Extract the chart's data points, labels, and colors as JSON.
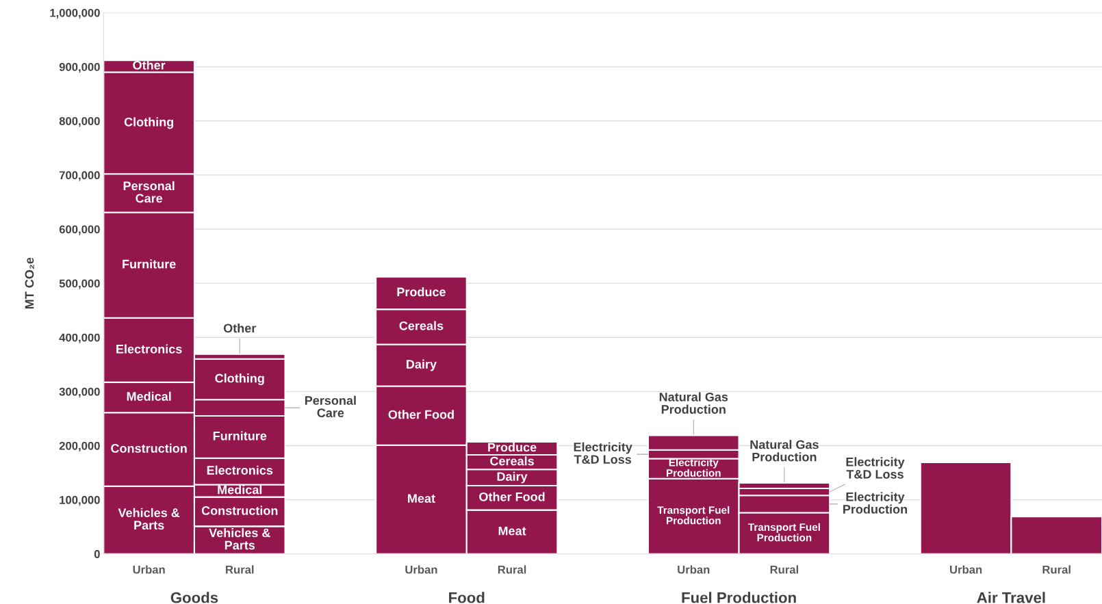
{
  "chart_data": {
    "type": "bar",
    "stacked": true,
    "ylabel": "MT CO₂e",
    "categories": [
      "Urban",
      "Rural",
      null,
      "Urban",
      "Rural",
      null,
      "Urban",
      "Rural",
      null,
      "Urban",
      "Rural"
    ],
    "series": [
      {
        "name": "Vehicles &\nParts",
        "color": "#93174c",
        "values": [
          125000,
          51000,
          null,
          null,
          null,
          null,
          null,
          null,
          null,
          null,
          null
        ]
      },
      {
        "name": "Construction",
        "color": "#93174c",
        "values": [
          136000,
          54000,
          null,
          null,
          null,
          null,
          null,
          null,
          null,
          null,
          null
        ]
      },
      {
        "name": "Medical",
        "color": "#93174c",
        "values": [
          56000,
          23000,
          null,
          null,
          null,
          null,
          null,
          null,
          null,
          null,
          null
        ]
      },
      {
        "name": "Electronics",
        "color": "#93174c",
        "values": [
          119000,
          49000,
          null,
          null,
          null,
          null,
          null,
          null,
          null,
          null,
          null
        ]
      },
      {
        "name": "Furniture",
        "color": "#93174c",
        "values": [
          195000,
          78000,
          null,
          null,
          null,
          null,
          null,
          null,
          null,
          null,
          null
        ]
      },
      {
        "name": "Personal\nCare",
        "color": "#93174c",
        "values": [
          71000,
          30000,
          null,
          null,
          null,
          null,
          null,
          null,
          null,
          null,
          null
        ]
      },
      {
        "name": "Clothing",
        "color": "#93174c",
        "values": [
          188000,
          75000,
          null,
          null,
          null,
          null,
          null,
          null,
          null,
          null,
          null
        ]
      },
      {
        "name": "Other",
        "color": "#93174c",
        "values": [
          22000,
          9000,
          null,
          null,
          null,
          null,
          null,
          null,
          null,
          null,
          null
        ]
      },
      {
        "name": "Meat",
        "color": "#93174c",
        "values": [
          null,
          null,
          null,
          201000,
          81000,
          null,
          null,
          null,
          null,
          null,
          null
        ]
      },
      {
        "name": "Other Food",
        "color": "#93174c",
        "values": [
          null,
          null,
          null,
          109000,
          45000,
          null,
          null,
          null,
          null,
          null,
          null
        ]
      },
      {
        "name": "Dairy",
        "color": "#93174c",
        "values": [
          null,
          null,
          null,
          77000,
          30000,
          null,
          null,
          null,
          null,
          null,
          null
        ]
      },
      {
        "name": "Cereals",
        "color": "#93174c",
        "values": [
          null,
          null,
          null,
          65000,
          27000,
          null,
          null,
          null,
          null,
          null,
          null
        ]
      },
      {
        "name": "Produce",
        "color": "#93174c",
        "values": [
          null,
          null,
          null,
          60000,
          24000,
          null,
          null,
          null,
          null,
          null,
          null
        ]
      },
      {
        "name": "Transport Fuel\nProduction",
        "color": "#93174c",
        "values": [
          null,
          null,
          null,
          null,
          null,
          null,
          139000,
          76000,
          null,
          null,
          null
        ]
      },
      {
        "name": "Electricity\nProduction",
        "color": "#93174c",
        "values": [
          null,
          null,
          null,
          null,
          null,
          null,
          37000,
          32000,
          null,
          null,
          null
        ]
      },
      {
        "name": "Electricity\nT&D Loss",
        "color": "#93174c",
        "values": [
          null,
          null,
          null,
          null,
          null,
          null,
          16000,
          13000,
          null,
          null,
          null
        ]
      },
      {
        "name": "Natural Gas\nProduction",
        "color": "#93174c",
        "values": [
          null,
          null,
          null,
          null,
          null,
          null,
          27000,
          10000,
          null,
          null,
          null
        ]
      },
      {
        "color": "#93174c",
        "values": [
          null,
          null,
          null,
          null,
          null,
          null,
          null,
          null,
          null,
          169000,
          69000
        ]
      }
    ],
    "ylim": [
      0,
      1000000
    ],
    "yticks": [
      0,
      {
        "value": 100000,
        "label": "100,000"
      },
      {
        "value": 200000,
        "label": "200,000"
      },
      {
        "value": 300000,
        "label": "300,000"
      },
      {
        "value": 400000,
        "label": "400,000"
      },
      {
        "value": 500000,
        "label": "500,000"
      },
      {
        "value": 600000,
        "label": "600,000"
      },
      {
        "value": 700000,
        "label": "700,000"
      },
      {
        "value": 800000,
        "label": "800,000"
      },
      {
        "value": 900000,
        "label": "900,000"
      },
      {
        "value": 1000000,
        "label": "1,000,000"
      }
    ],
    "grid": "y",
    "annotations": [
      "Goods",
      "Food",
      "Fuel Production",
      "Air Travel"
    ]
  }
}
